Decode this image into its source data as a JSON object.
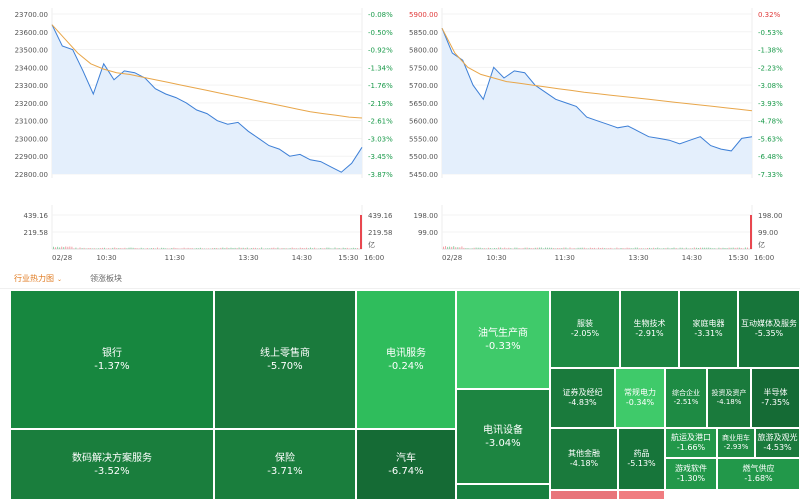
{
  "chart_data": [
    {
      "type": "line",
      "y_ticks": [
        "23700.00",
        "23600.00",
        "23500.00",
        "23400.00",
        "23300.00",
        "23200.00",
        "23100.00",
        "23000.00",
        "22900.00",
        "22800.00"
      ],
      "y_values": [
        23700,
        23600,
        23500,
        23400,
        23300,
        23200,
        23100,
        23000,
        22900,
        22800
      ],
      "pct_ticks": [
        "-0.08%",
        "-0.50%",
        "-0.92%",
        "-1.34%",
        "-1.76%",
        "-2.19%",
        "-2.61%",
        "-3.03%",
        "-3.45%",
        "-3.87%"
      ],
      "x_ticks": [
        "02/28",
        "10:30",
        "11:30",
        "13:30",
        "14:30",
        "15:30",
        "16:00"
      ],
      "vol_ticks_left": [
        "439.16",
        "219.58"
      ],
      "vol_ticks_right": [
        "439.16",
        "219.58",
        "亿"
      ],
      "series": [
        {
          "values": [
            23640,
            23520,
            23500,
            23380,
            23250,
            23420,
            23330,
            23380,
            23370,
            23340,
            23280,
            23250,
            23230,
            23200,
            23160,
            23140,
            23100,
            23080,
            23090,
            23040,
            23000,
            22960,
            22940,
            22900,
            22910,
            22880,
            22870,
            22840,
            22810,
            22860,
            22950
          ]
        },
        {
          "values": [
            23640,
            23560,
            23480,
            23420,
            23390,
            23370,
            23360,
            23345,
            23330,
            23315,
            23300,
            23285,
            23270,
            23255,
            23240,
            23225,
            23210,
            23195,
            23180,
            23165,
            23150,
            23140,
            23130,
            23120,
            23115
          ]
        }
      ]
    },
    {
      "type": "line",
      "y_ticks": [
        "5900.00",
        "5850.00",
        "5800.00",
        "5750.00",
        "5700.00",
        "5650.00",
        "5600.00",
        "5550.00",
        "5500.00",
        "5450.00"
      ],
      "y_values": [
        5900,
        5850,
        5800,
        5750,
        5700,
        5650,
        5600,
        5550,
        5500,
        5450
      ],
      "pct_ticks": [
        "0.32%",
        "-0.53%",
        "-1.38%",
        "-2.23%",
        "-3.08%",
        "-3.93%",
        "-4.78%",
        "-5.63%",
        "-6.48%",
        "-7.33%"
      ],
      "x_ticks": [
        "02/28",
        "10:30",
        "11:30",
        "13:30",
        "14:30",
        "15:30",
        "16:00"
      ],
      "vol_ticks_left": [
        "198.00",
        "99.00"
      ],
      "vol_ticks_right": [
        "198.00",
        "99.00",
        "亿"
      ],
      "series": [
        {
          "values": [
            5860,
            5790,
            5770,
            5700,
            5660,
            5750,
            5720,
            5740,
            5735,
            5700,
            5680,
            5660,
            5650,
            5640,
            5610,
            5600,
            5590,
            5580,
            5585,
            5570,
            5555,
            5550,
            5545,
            5535,
            5545,
            5555,
            5530,
            5520,
            5515,
            5550,
            5555
          ]
        },
        {
          "values": [
            5860,
            5790,
            5750,
            5730,
            5720,
            5710,
            5705,
            5700,
            5695,
            5690,
            5685,
            5680,
            5676,
            5672,
            5668,
            5664,
            5660,
            5656,
            5652,
            5648,
            5644,
            5640,
            5636,
            5632,
            5628
          ]
        }
      ]
    }
  ],
  "tabs": [
    {
      "label": "行业热力图",
      "caret": "⌄"
    },
    {
      "label": "领涨板块"
    }
  ],
  "heatmap": [
    {
      "name": "银行",
      "pct": "-1.37%",
      "color": "#17873f"
    },
    {
      "name": "线上零售商",
      "pct": "-5.70%",
      "color": "#1a7a3c"
    },
    {
      "name": "电讯服务",
      "pct": "-0.24%",
      "color": "#2fbd5c"
    },
    {
      "name": "油气生产商",
      "pct": "-0.33%",
      "color": "#3fca6a"
    },
    {
      "name": "服装",
      "pct": "-2.05%",
      "color": "#1e8b44"
    },
    {
      "name": "生物技术",
      "pct": "-2.91%",
      "color": "#1d8541"
    },
    {
      "name": "家庭电器",
      "pct": "-3.31%",
      "color": "#1a7e3d"
    },
    {
      "name": "互动媒体及服务",
      "pct": "-5.35%",
      "color": "#17753a"
    },
    {
      "name": "证券及经纪",
      "pct": "-4.83%",
      "color": "#1a7a3c"
    },
    {
      "name": "常规电力",
      "pct": "-0.34%",
      "color": "#3fca6a"
    },
    {
      "name": "综合企业",
      "pct": "-2.51%",
      "color": "#1e8b44"
    },
    {
      "name": "投资及资产",
      "pct": "-4.18%",
      "color": "#1a7a3c"
    },
    {
      "name": "半导体",
      "pct": "-7.35%",
      "color": "#156b35"
    },
    {
      "name": "电讯设备",
      "pct": "-3.04%",
      "color": "#1d8541"
    },
    {
      "name": "其他金融",
      "pct": "-4.18%",
      "color": "#1a7a3c"
    },
    {
      "name": "药品",
      "pct": "-5.13%",
      "color": "#17753a"
    },
    {
      "name": "航运及港口",
      "pct": "-1.66%",
      "color": "#22984a"
    },
    {
      "name": "商业用车",
      "pct": "-2.93%",
      "color": "#1e8b44"
    },
    {
      "name": "旅游及观光",
      "pct": "-4.53%",
      "color": "#1a7a3c"
    },
    {
      "name": "游戏软件",
      "pct": "-1.30%",
      "color": "#22984a"
    },
    {
      "name": "燃气供应",
      "pct": "-1.68%",
      "color": "#22984a"
    },
    {
      "name": "数码解决方案服务",
      "pct": "-3.52%",
      "color": "#1a7e3d"
    },
    {
      "name": "保险",
      "pct": "-3.71%",
      "color": "#1a7e3d"
    },
    {
      "name": "汽车",
      "pct": "-6.74%",
      "color": "#156b35"
    },
    {
      "name": "",
      "pct": "",
      "color": "#178040"
    },
    {
      "name": "",
      "pct": "",
      "color": "#e8747a"
    },
    {
      "name": "",
      "pct": "",
      "color": "#f07c80"
    }
  ]
}
